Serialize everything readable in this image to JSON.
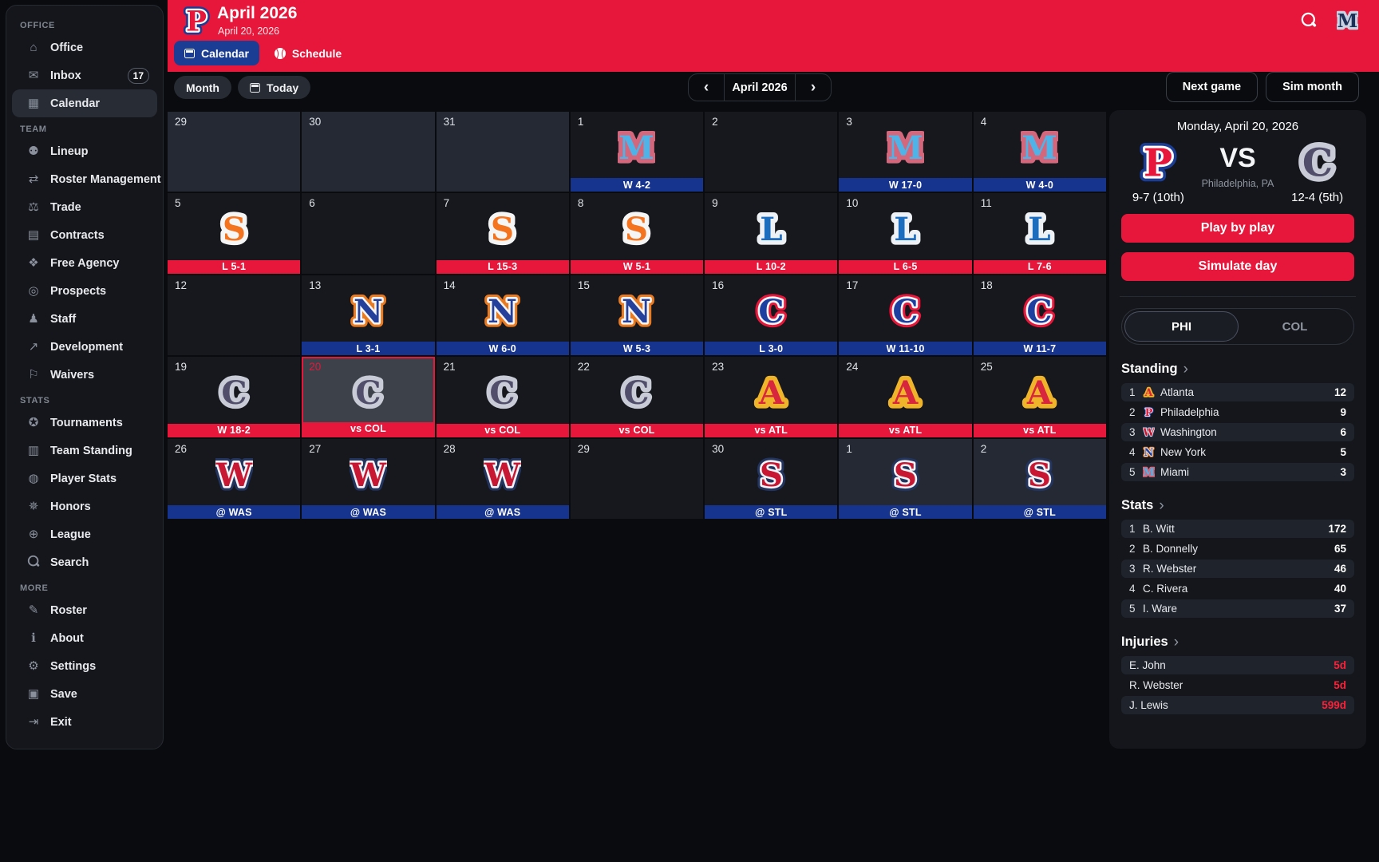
{
  "colors": {
    "accent_red": "#e6173a",
    "win_bar_blue": "#16338e",
    "header_tab_blue": "#1b3d94"
  },
  "team_colors": {
    "mia": {
      "fill": "#4fb3e8",
      "ring": "#d4677b"
    },
    "syr": {
      "fill": "#f4731f",
      "ring": "#f5f5f5"
    },
    "lou": {
      "fill": "#1c6cc0",
      "ring": "#eef1f5"
    },
    "nyk": {
      "fill": "#24409a",
      "ring": "#f5f5f5",
      "ring2": "#e87a22"
    },
    "chc": {
      "fill": "#1d3fa0",
      "ring": "#f5f5f5",
      "ring2": "#e6173a"
    },
    "col": {
      "fill": "#504e6a",
      "ring": "#c9ccd6"
    },
    "atl": {
      "fill": "#d7263d",
      "ring": "#f0b42a"
    },
    "was": {
      "fill": "#c81733",
      "ring": "#f2f4f7",
      "ring2": "#23355f"
    },
    "stl": {
      "fill": "#c81733",
      "ring": "#f2f4f7",
      "ring2": "#23355f"
    },
    "phi": {
      "fill": "#e6173a",
      "ring": "#ffffff",
      "ring2": "#1b3d94"
    },
    "lge": {
      "fill": "#1d3058",
      "ring": "#c8d2e2"
    }
  },
  "sidebar": {
    "sections": [
      {
        "label": "OFFICE",
        "items": [
          {
            "label": "Office",
            "icon": "office"
          },
          {
            "label": "Inbox",
            "icon": "inbox",
            "badge": "17"
          },
          {
            "label": "Calendar",
            "icon": "calendar",
            "active": true
          }
        ]
      },
      {
        "label": "TEAM",
        "items": [
          {
            "label": "Lineup",
            "icon": "lineup"
          },
          {
            "label": "Roster Management",
            "icon": "roster-management"
          },
          {
            "label": "Trade",
            "icon": "trade"
          },
          {
            "label": "Contracts",
            "icon": "contracts"
          },
          {
            "label": "Free Agency",
            "icon": "free-agency"
          },
          {
            "label": "Prospects",
            "icon": "prospects"
          },
          {
            "label": "Staff",
            "icon": "staff"
          },
          {
            "label": "Development",
            "icon": "development"
          },
          {
            "label": "Waivers",
            "icon": "waivers"
          }
        ]
      },
      {
        "label": "STATS",
        "items": [
          {
            "label": "Tournaments",
            "icon": "tournaments"
          },
          {
            "label": "Team Standing",
            "icon": "team-standing"
          },
          {
            "label": "Player Stats",
            "icon": "player-stats"
          },
          {
            "label": "Honors",
            "icon": "honors"
          },
          {
            "label": "League",
            "icon": "league"
          },
          {
            "label": "Search",
            "icon": "search"
          }
        ]
      },
      {
        "label": "MORE",
        "items": [
          {
            "label": "Roster",
            "icon": "roster"
          },
          {
            "label": "About",
            "icon": "about"
          },
          {
            "label": "Settings",
            "icon": "settings"
          },
          {
            "label": "Save",
            "icon": "save"
          },
          {
            "label": "Exit",
            "icon": "exit"
          }
        ]
      }
    ]
  },
  "header": {
    "team": "phi",
    "team_letter": "P",
    "title": "April 2026",
    "subtitle": "April 20, 2026",
    "tabs": [
      {
        "label": "Calendar",
        "icon": "calendar",
        "active": true
      },
      {
        "label": "Schedule",
        "icon": "baseball",
        "active": false
      }
    ],
    "league_logo_letter": "M",
    "league_logo_team": "lge"
  },
  "toolbar": {
    "month_button": "Month",
    "today_button": "Today",
    "nav_label": "April 2026",
    "prev_char": "‹",
    "next_char": "›",
    "next_game_button": "Next game",
    "sim_month_button": "Sim month"
  },
  "calendar": {
    "cells": [
      {
        "day": "29",
        "other_month": true
      },
      {
        "day": "30",
        "other_month": true
      },
      {
        "day": "31",
        "other_month": true
      },
      {
        "day": "1",
        "team": "mia",
        "letter": "M",
        "result": "W 4-2",
        "bar": "blue"
      },
      {
        "day": "2"
      },
      {
        "day": "3",
        "team": "mia",
        "letter": "M",
        "result": "W 17-0",
        "bar": "blue"
      },
      {
        "day": "4",
        "team": "mia",
        "letter": "M",
        "result": "W 4-0",
        "bar": "blue"
      },
      {
        "day": "5",
        "team": "syr",
        "letter": "S",
        "result": "L 5-1",
        "bar": "red"
      },
      {
        "day": "6"
      },
      {
        "day": "7",
        "team": "syr",
        "letter": "S",
        "result": "L 15-3",
        "bar": "red"
      },
      {
        "day": "8",
        "team": "syr",
        "letter": "S",
        "result": "W 5-1",
        "bar": "red"
      },
      {
        "day": "9",
        "team": "lou",
        "letter": "L",
        "result": "L 10-2",
        "bar": "red"
      },
      {
        "day": "10",
        "team": "lou",
        "letter": "L",
        "result": "L 6-5",
        "bar": "red"
      },
      {
        "day": "11",
        "team": "lou",
        "letter": "L",
        "result": "L 7-6",
        "bar": "red"
      },
      {
        "day": "12"
      },
      {
        "day": "13",
        "team": "nyk",
        "letter": "N",
        "result": "L 3-1",
        "bar": "blue"
      },
      {
        "day": "14",
        "team": "nyk",
        "letter": "N",
        "result": "W 6-0",
        "bar": "blue"
      },
      {
        "day": "15",
        "team": "nyk",
        "letter": "N",
        "result": "W 5-3",
        "bar": "blue"
      },
      {
        "day": "16",
        "team": "chc",
        "letter": "C",
        "result": "L 3-0",
        "bar": "blue"
      },
      {
        "day": "17",
        "team": "chc",
        "letter": "C",
        "result": "W 11-10",
        "bar": "blue"
      },
      {
        "day": "18",
        "team": "chc",
        "letter": "C",
        "result": "W 11-7",
        "bar": "blue"
      },
      {
        "day": "19",
        "team": "col",
        "letter": "C",
        "result": "W 18-2",
        "bar": "red"
      },
      {
        "day": "20",
        "team": "col",
        "letter": "C",
        "result": "vs COL",
        "bar": "red",
        "selected": true
      },
      {
        "day": "21",
        "team": "col",
        "letter": "C",
        "result": "vs COL",
        "bar": "red"
      },
      {
        "day": "22",
        "team": "col",
        "letter": "C",
        "result": "vs COL",
        "bar": "red"
      },
      {
        "day": "23",
        "team": "atl",
        "letter": "A",
        "result": "vs ATL",
        "bar": "red"
      },
      {
        "day": "24",
        "team": "atl",
        "letter": "A",
        "result": "vs ATL",
        "bar": "red"
      },
      {
        "day": "25",
        "team": "atl",
        "letter": "A",
        "result": "vs ATL",
        "bar": "red"
      },
      {
        "day": "26",
        "team": "was",
        "letter": "W",
        "result": "@ WAS",
        "bar": "blue"
      },
      {
        "day": "27",
        "team": "was",
        "letter": "W",
        "result": "@ WAS",
        "bar": "blue"
      },
      {
        "day": "28",
        "team": "was",
        "letter": "W",
        "result": "@ WAS",
        "bar": "blue"
      },
      {
        "day": "29"
      },
      {
        "day": "30",
        "team": "stl",
        "letter": "S",
        "result": "@ STL",
        "bar": "blue"
      },
      {
        "day": "1",
        "other_month": true,
        "team": "stl",
        "letter": "S",
        "result": "@ STL",
        "bar": "blue"
      },
      {
        "day": "2",
        "other_month": true,
        "team": "stl",
        "letter": "S",
        "result": "@ STL",
        "bar": "blue"
      }
    ]
  },
  "panel": {
    "date": "Monday, April 20, 2026",
    "matchup": {
      "home_team": "phi",
      "home_letter": "P",
      "home_record": "9-7 (10th)",
      "vs_label": "VS",
      "location": "Philadelphia, PA",
      "away_team": "col",
      "away_letter": "C",
      "away_record": "12-4 (5th)"
    },
    "play_by_play_button": "Play by play",
    "simulate_day_button": "Simulate day",
    "team_tabs": [
      {
        "label": "PHI",
        "active": true
      },
      {
        "label": "COL",
        "active": false
      }
    ],
    "section_chevron": "›",
    "standing": {
      "title": "Standing",
      "rows": [
        {
          "rank": "1",
          "team": "atl",
          "letter": "A",
          "name": "Atlanta",
          "value": "12"
        },
        {
          "rank": "2",
          "team": "phi",
          "letter": "P",
          "name": "Philadelphia",
          "value": "9"
        },
        {
          "rank": "3",
          "team": "was",
          "letter": "W",
          "name": "Washington",
          "value": "6"
        },
        {
          "rank": "4",
          "team": "nyk",
          "letter": "N",
          "name": "New York",
          "value": "5"
        },
        {
          "rank": "5",
          "team": "mia",
          "letter": "M",
          "name": "Miami",
          "value": "3"
        }
      ]
    },
    "stats": {
      "title": "Stats",
      "rows": [
        {
          "rank": "1",
          "name": "B. Witt",
          "value": "172"
        },
        {
          "rank": "2",
          "name": "B. Donnelly",
          "value": "65"
        },
        {
          "rank": "3",
          "name": "R. Webster",
          "value": "46"
        },
        {
          "rank": "4",
          "name": "C. Rivera",
          "value": "40"
        },
        {
          "rank": "5",
          "name": "I. Ware",
          "value": "37"
        }
      ]
    },
    "injuries": {
      "title": "Injuries",
      "rows": [
        {
          "name": "E. John",
          "value": "5d"
        },
        {
          "name": "R. Webster",
          "value": "5d"
        },
        {
          "name": "J. Lewis",
          "value": "599d"
        }
      ]
    }
  }
}
